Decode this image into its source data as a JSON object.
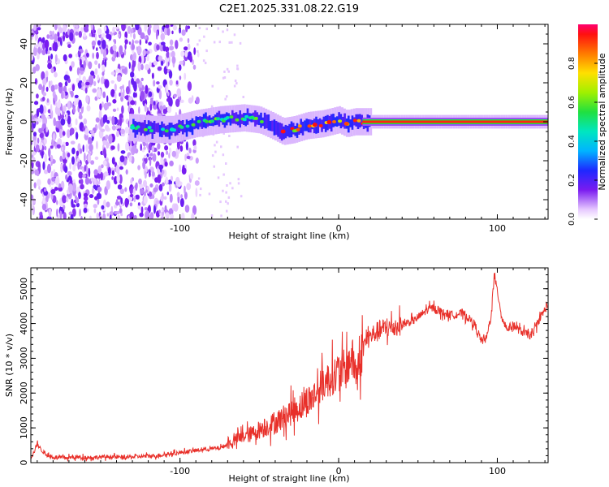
{
  "figure_title": "C2E1.2025.331.08.22.G19",
  "chart_data": [
    {
      "type": "heatmap",
      "title": "C2E1.2025.331.08.22.G19",
      "xlabel": "Height of straight line (km)",
      "ylabel": "Frequency (Hz)",
      "xlim": [
        -194,
        132
      ],
      "ylim": [
        -50,
        50
      ],
      "x_ticks": [
        -100,
        0,
        100
      ],
      "x_tick_labels": [
        "-100",
        "0",
        "100"
      ],
      "y_ticks": [
        -40,
        -20,
        0,
        20,
        40
      ],
      "y_tick_labels": [
        "-40",
        "-20",
        "0",
        "20",
        "40"
      ],
      "description_of_trace": [
        {
          "x": -130,
          "y": -3
        },
        {
          "x": -115,
          "y": -4
        },
        {
          "x": -105,
          "y": -4
        },
        {
          "x": -90,
          "y": -1
        },
        {
          "x": -75,
          "y": 1
        },
        {
          "x": -60,
          "y": 2
        },
        {
          "x": -50,
          "y": 1
        },
        {
          "x": -42,
          "y": -2
        },
        {
          "x": -35,
          "y": -5
        },
        {
          "x": -28,
          "y": -4
        },
        {
          "x": -20,
          "y": -2
        },
        {
          "x": -10,
          "y": -1
        },
        {
          "x": -5,
          "y": 0
        },
        {
          "x": 0,
          "y": 1
        },
        {
          "x": 5,
          "y": -1
        },
        {
          "x": 10,
          "y": 0
        },
        {
          "x": 20,
          "y": 0
        },
        {
          "x": 132,
          "y": 0
        }
      ],
      "colorbar": {
        "label": "Normalized spectral amplitude",
        "range": [
          0,
          1
        ],
        "ticks": [
          0.0,
          0.2,
          0.4,
          0.6,
          0.8
        ],
        "tick_labels": [
          "0.0",
          "0.2",
          "0.4",
          "0.6",
          "0.8"
        ]
      }
    },
    {
      "type": "line",
      "xlabel": "Height of straight line (km)",
      "ylabel": "SNR (10 * v/v)",
      "xlim": [
        -194,
        132
      ],
      "ylim": [
        0,
        5600
      ],
      "x_ticks": [
        -100,
        0,
        100
      ],
      "x_tick_labels": [
        "-100",
        "0",
        "100"
      ],
      "y_ticks": [
        0,
        1000,
        2000,
        3000,
        4000,
        5000
      ],
      "y_tick_labels": [
        "0",
        "1000",
        "2000",
        "3000",
        "4000",
        "5000"
      ],
      "series": [
        {
          "name": "SNR",
          "color": "#e8302a",
          "x": [
            -194,
            -192,
            -190,
            -188,
            -185,
            -182,
            -178,
            -172,
            -165,
            -155,
            -145,
            -135,
            -125,
            -115,
            -105,
            -95,
            -85,
            -75,
            -70,
            -65,
            -60,
            -55,
            -50,
            -45,
            -40,
            -35,
            -30,
            -25,
            -20,
            -15,
            -10,
            -5,
            0,
            5,
            8,
            12,
            15,
            18,
            22,
            28,
            35,
            42,
            48,
            52,
            56,
            60,
            66,
            72,
            78,
            82,
            86,
            90,
            93,
            96,
            98,
            100,
            103,
            106,
            110,
            114,
            118,
            122,
            126,
            130,
            132
          ],
          "values": [
            150,
            300,
            550,
            400,
            250,
            180,
            150,
            140,
            160,
            150,
            170,
            150,
            180,
            200,
            260,
            320,
            380,
            420,
            520,
            650,
            760,
            820,
            950,
            1050,
            1150,
            1300,
            1450,
            1600,
            1750,
            1950,
            2250,
            2450,
            2600,
            2700,
            3050,
            2500,
            3300,
            3550,
            3700,
            3850,
            3900,
            4000,
            4100,
            4250,
            4400,
            4450,
            4300,
            4250,
            4300,
            4150,
            3950,
            3500,
            3550,
            4200,
            5350,
            4950,
            4150,
            3850,
            3950,
            3800,
            3700,
            3650,
            4100,
            4400,
            4550
          ]
        }
      ]
    }
  ]
}
